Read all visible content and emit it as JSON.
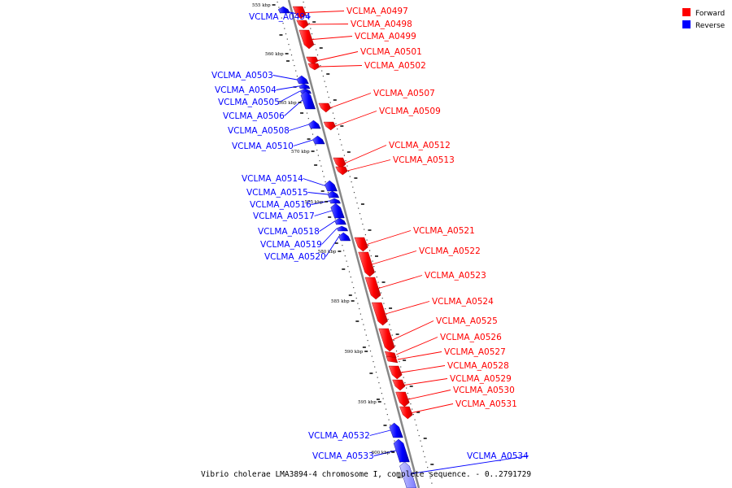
{
  "caption": "Vibrio cholerae LMA3894-4 chromosome I, complete sequence. - 0..2791729",
  "legend": [
    {
      "label": "Forward",
      "color": "#ff0000"
    },
    {
      "label": "Reverse",
      "color": "#0000ff"
    }
  ],
  "colors": {
    "forward": "#ff0000",
    "reverse": "#0000ff",
    "backbone": "#999999"
  },
  "ticks": [
    "555 kbp",
    "560 kbp",
    "565 kbp",
    "570 kbp",
    "575 kbp",
    "580 kbp",
    "585 kbp",
    "590 kbp",
    "595 kbp",
    "600 kbp"
  ],
  "genes": [
    {
      "id": "VCLMA_A0494",
      "strand": "reverse"
    },
    {
      "id": "VCLMA_A0497",
      "strand": "forward"
    },
    {
      "id": "VCLMA_A0498",
      "strand": "forward"
    },
    {
      "id": "VCLMA_A0499",
      "strand": "forward"
    },
    {
      "id": "VCLMA_A0501",
      "strand": "forward"
    },
    {
      "id": "VCLMA_A0502",
      "strand": "forward"
    },
    {
      "id": "VCLMA_A0503",
      "strand": "reverse"
    },
    {
      "id": "VCLMA_A0504",
      "strand": "reverse"
    },
    {
      "id": "VCLMA_A0505",
      "strand": "reverse"
    },
    {
      "id": "VCLMA_A0506",
      "strand": "reverse"
    },
    {
      "id": "VCLMA_A0507",
      "strand": "forward"
    },
    {
      "id": "VCLMA_A0508",
      "strand": "reverse"
    },
    {
      "id": "VCLMA_A0509",
      "strand": "forward"
    },
    {
      "id": "VCLMA_A0510",
      "strand": "reverse"
    },
    {
      "id": "VCLMA_A0512",
      "strand": "forward"
    },
    {
      "id": "VCLMA_A0513",
      "strand": "forward"
    },
    {
      "id": "VCLMA_A0514",
      "strand": "reverse"
    },
    {
      "id": "VCLMA_A0515",
      "strand": "reverse"
    },
    {
      "id": "VCLMA_A0516",
      "strand": "reverse"
    },
    {
      "id": "VCLMA_A0517",
      "strand": "reverse"
    },
    {
      "id": "VCLMA_A0518",
      "strand": "reverse"
    },
    {
      "id": "VCLMA_A0519",
      "strand": "reverse"
    },
    {
      "id": "VCLMA_A0520",
      "strand": "reverse"
    },
    {
      "id": "VCLMA_A0521",
      "strand": "forward"
    },
    {
      "id": "VCLMA_A0522",
      "strand": "forward"
    },
    {
      "id": "VCLMA_A0523",
      "strand": "forward"
    },
    {
      "id": "VCLMA_A0524",
      "strand": "forward"
    },
    {
      "id": "VCLMA_A0525",
      "strand": "forward"
    },
    {
      "id": "VCLMA_A0526",
      "strand": "forward"
    },
    {
      "id": "VCLMA_A0527",
      "strand": "forward"
    },
    {
      "id": "VCLMA_A0528",
      "strand": "forward"
    },
    {
      "id": "VCLMA_A0529",
      "strand": "forward"
    },
    {
      "id": "VCLMA_A0530",
      "strand": "forward"
    },
    {
      "id": "VCLMA_A0531",
      "strand": "forward"
    },
    {
      "id": "VCLMA_A0532",
      "strand": "reverse"
    },
    {
      "id": "VCLMA_A0533",
      "strand": "reverse"
    },
    {
      "id": "VCLMA_A0534",
      "strand": "reverse"
    }
  ]
}
